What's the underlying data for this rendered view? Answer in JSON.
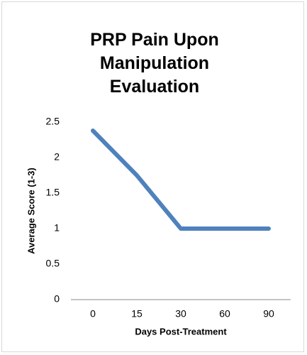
{
  "chart_data": {
    "type": "line",
    "title": "PRP Pain Upon Manipulation Evaluation",
    "x_label": "Days Post-Treatment",
    "y_label": "Average Score (1-3)",
    "categories": [
      "0",
      "15",
      "30",
      "60",
      "90"
    ],
    "series": [
      {
        "name": "Average Score",
        "color": "#4f81bd",
        "values": [
          2.38,
          1.75,
          1.0,
          1.0,
          1.0
        ]
      }
    ],
    "ylim": [
      0,
      2.5
    ],
    "yticks": [
      0,
      0.5,
      1,
      1.5,
      2,
      2.5
    ],
    "grid": false
  }
}
